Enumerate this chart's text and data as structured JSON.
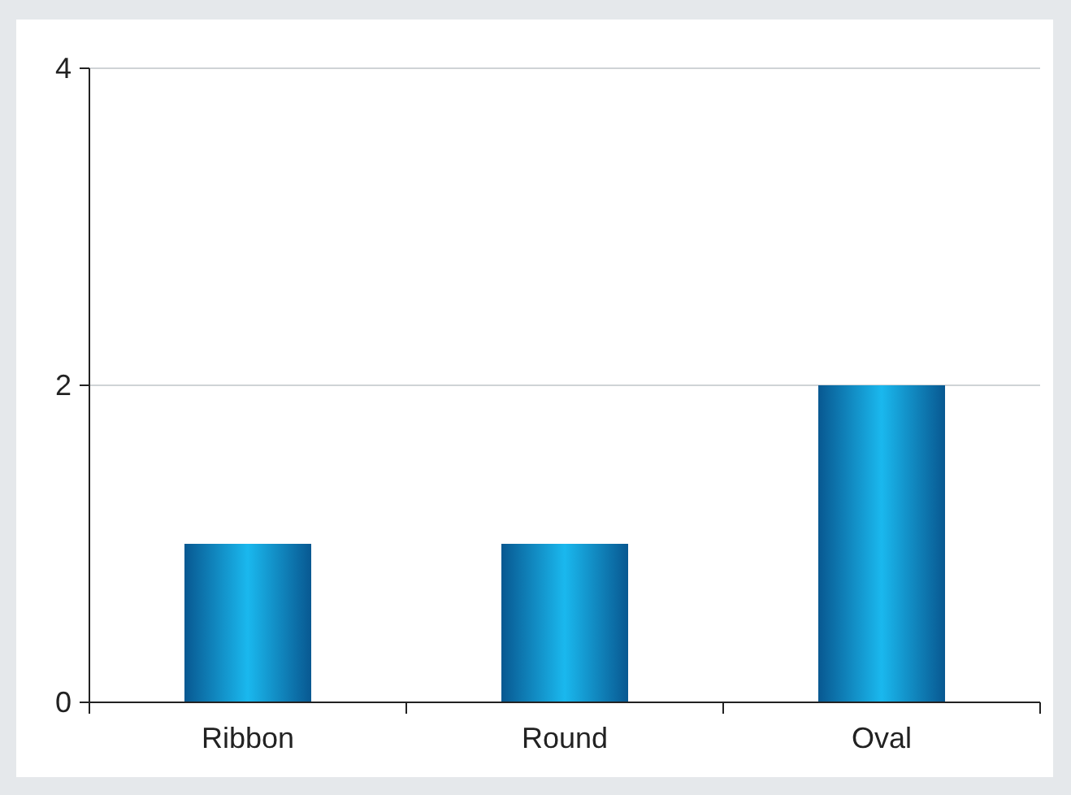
{
  "chart_data": {
    "type": "bar",
    "categories": [
      "Ribbon",
      "Round",
      "Oval"
    ],
    "values": [
      1,
      1,
      2
    ],
    "color": "#0a6db4",
    "ylim": [
      0,
      4
    ],
    "yticks": [
      0,
      2,
      4
    ],
    "grid": "y"
  }
}
